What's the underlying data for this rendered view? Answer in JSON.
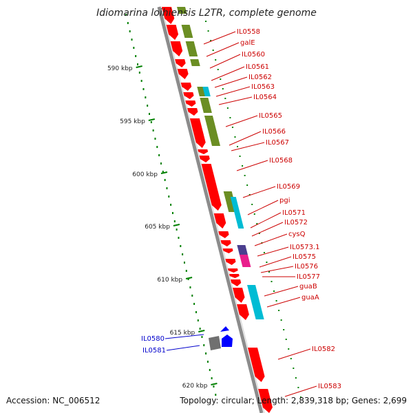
{
  "header": {
    "title": "Idiomarina loihiensis L2TR, complete genome"
  },
  "footer": {
    "accession": "Accession: NC_006512",
    "summary": "Topology: circular; Length: 2,839,318 bp; Genes: 2,699"
  },
  "colors": {
    "backbone": "#8c8c8c",
    "cds_forward": "#ff0000",
    "cds_reverse": "#ff0000",
    "cog_olive": "#6b8e23",
    "cog_cyan": "#00bcd4",
    "cog_purple": "#4b3f8f",
    "cog_magenta": "#e91e8c",
    "rna_blue": "#0000ff",
    "gray_feature": "#707070",
    "label_red": "#cc0000",
    "label_blue": "#0000cc",
    "tick_green": "#008000"
  },
  "scale": {
    "kbp_labels": [
      "590 kbp",
      "595 kbp",
      "600 kbp",
      "605 kbp",
      "610 kbp",
      "615 kbp",
      "620 kbp"
    ]
  },
  "genes": [
    {
      "label": "IL0558",
      "color": "red"
    },
    {
      "label": "galE",
      "color": "red"
    },
    {
      "label": "IL0560",
      "color": "red"
    },
    {
      "label": "IL0561",
      "color": "red"
    },
    {
      "label": "IL0562",
      "color": "red"
    },
    {
      "label": "IL0563",
      "color": "red"
    },
    {
      "label": "IL0564",
      "color": "red"
    },
    {
      "label": "IL0565",
      "color": "red"
    },
    {
      "label": "IL0566",
      "color": "red"
    },
    {
      "label": "IL0567",
      "color": "red"
    },
    {
      "label": "IL0568",
      "color": "red"
    },
    {
      "label": "IL0569",
      "color": "red"
    },
    {
      "label": "pgi",
      "color": "red"
    },
    {
      "label": "IL0571",
      "color": "red"
    },
    {
      "label": "IL0572",
      "color": "red"
    },
    {
      "label": "cysQ",
      "color": "red"
    },
    {
      "label": "IL0573.1",
      "color": "red"
    },
    {
      "label": "IL0575",
      "color": "red"
    },
    {
      "label": "IL0576",
      "color": "red"
    },
    {
      "label": "IL0577",
      "color": "red"
    },
    {
      "label": "guaB",
      "color": "red"
    },
    {
      "label": "guaA",
      "color": "red"
    },
    {
      "label": "IL0580",
      "color": "blue"
    },
    {
      "label": "IL0581",
      "color": "blue"
    },
    {
      "label": "IL0582",
      "color": "red"
    },
    {
      "label": "IL0583",
      "color": "red"
    }
  ]
}
